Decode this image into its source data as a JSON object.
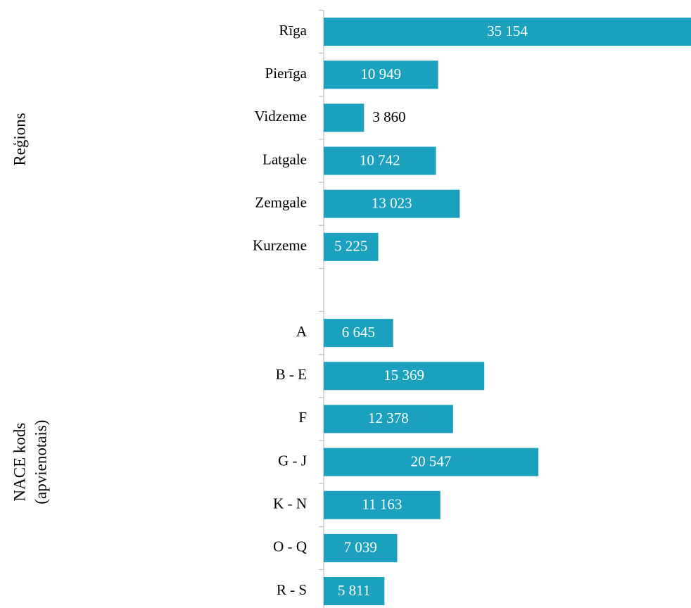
{
  "chart_data": {
    "type": "bar",
    "orientation": "horizontal",
    "color": "#1ba1bd",
    "group_labels": [
      [
        "Reģions"
      ],
      [
        "NACE kods",
        "(apvienotais)"
      ]
    ],
    "categories": [
      "Rīga",
      "Pierīga",
      "Vidzeme",
      "Latgale",
      "Zemgale",
      "Kurzeme",
      null,
      "A",
      "B - E",
      "F",
      "G - J",
      "K - N",
      "O - Q",
      "R - S"
    ],
    "values": [
      35154,
      10949,
      3860,
      10742,
      13023,
      5225,
      null,
      6645,
      15369,
      12378,
      20547,
      11163,
      7039,
      5811
    ],
    "value_labels": [
      "35 154",
      "10 949",
      "3 860",
      "10 742",
      "13 023",
      "5 225",
      null,
      "6 645",
      "15 369",
      "12 378",
      "20 547",
      "11 163",
      "7 039",
      "5 811"
    ]
  }
}
